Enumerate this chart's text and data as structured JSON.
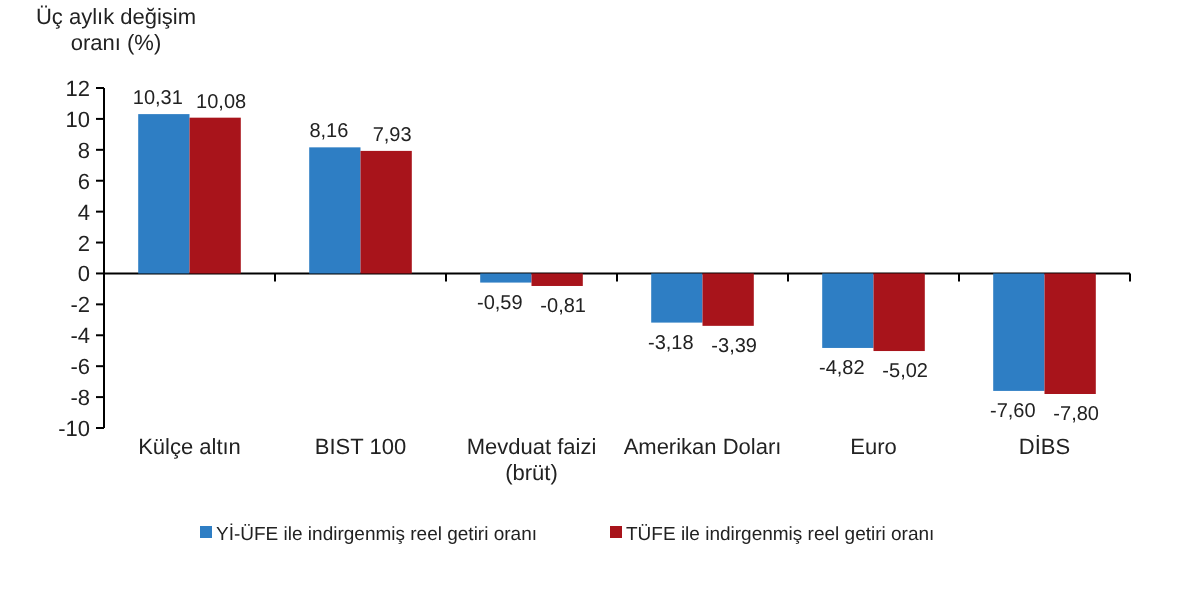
{
  "chart_data": {
    "type": "bar",
    "ylabel": "Üç aylık değişim oranı (%)",
    "categories": [
      "Külçe altın",
      "BIST 100",
      "Mevduat faizi (brüt)",
      "Amerikan Doları",
      "Euro",
      "DİBS"
    ],
    "series": [
      {
        "name": "Yİ-ÜFE ile indirgenmiş reel getiri oranı",
        "color": "#2e7ec4",
        "values": [
          10.31,
          8.16,
          -0.59,
          -3.18,
          -4.82,
          -7.6
        ],
        "value_labels": [
          "10,31",
          "8,16",
          "-0,59",
          "-3,18",
          "-4,82",
          "-7,60"
        ]
      },
      {
        "name": "TÜFE ile indirgenmiş reel getiri oranı",
        "color": "#a8141b",
        "values": [
          10.08,
          7.93,
          -0.81,
          -3.39,
          -5.02,
          -7.8
        ],
        "value_labels": [
          "10,08",
          "7,93",
          "-0,81",
          "-3,39",
          "-5,02",
          "-7,80"
        ]
      }
    ],
    "ylim": [
      -10,
      12
    ],
    "yticks": [
      -10,
      -8,
      -6,
      -4,
      -2,
      0,
      2,
      4,
      6,
      8,
      10,
      12
    ],
    "legend": "bottom"
  }
}
